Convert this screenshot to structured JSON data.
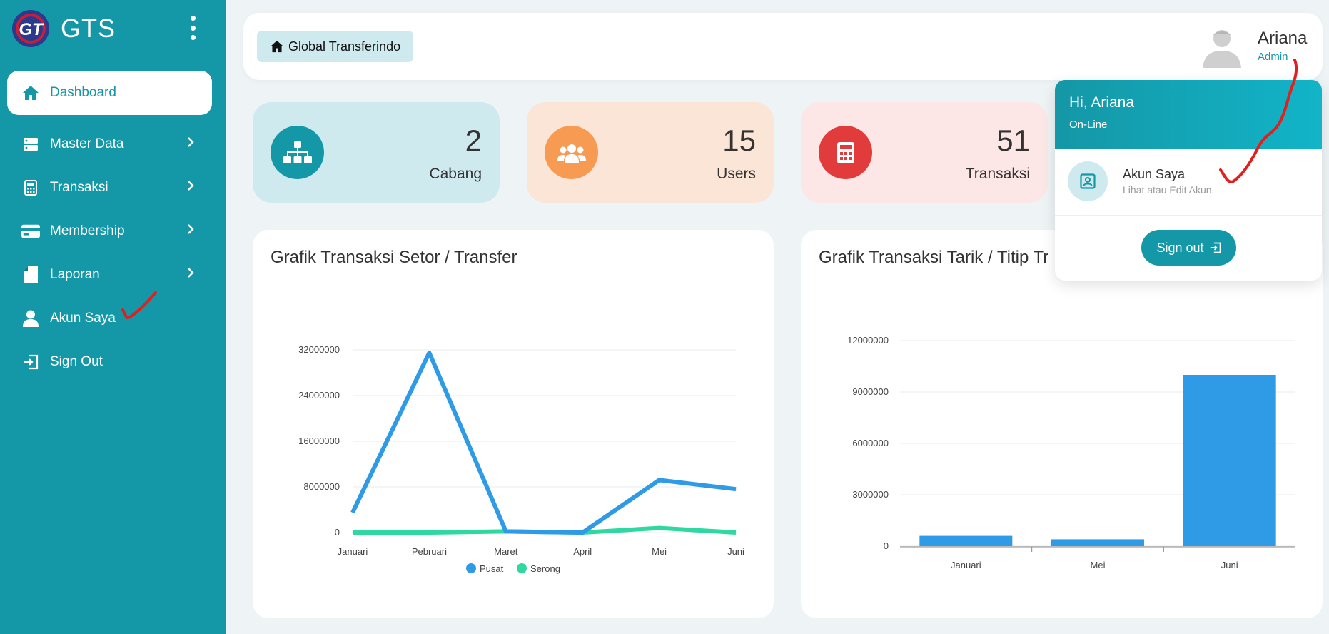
{
  "app": {
    "brand": "GTS"
  },
  "sidebar": {
    "items": [
      {
        "label": "Dashboard",
        "icon": "home-icon",
        "active": true
      },
      {
        "label": "Master Data",
        "icon": "server-icon",
        "chevron": true
      },
      {
        "label": "Transaksi",
        "icon": "calculator-icon",
        "chevron": true
      },
      {
        "label": "Membership",
        "icon": "credit-card-icon",
        "chevron": true
      },
      {
        "label": "Laporan",
        "icon": "file-icon",
        "chevron": true
      },
      {
        "label": "Akun Saya",
        "icon": "user-icon"
      },
      {
        "label": "Sign Out",
        "icon": "sign-out-icon"
      }
    ]
  },
  "topbar": {
    "breadcrumb": "Global Transferindo",
    "user_name": "Ariana",
    "user_role": "Admin"
  },
  "stats": [
    {
      "value": "2",
      "label": "Cabang",
      "icon": "sitemap-icon",
      "bg": "#cfeaee",
      "circle": "#1497a6"
    },
    {
      "value": "15",
      "label": "Users",
      "icon": "users-icon",
      "bg": "#fbe5d6",
      "circle": "#f79a52"
    },
    {
      "value": "51",
      "label": "Transaksi",
      "icon": "calculator-icon",
      "bg": "#fde6e6",
      "circle": "#e23b3b"
    }
  ],
  "charts": {
    "left_title": "Grafik Transaksi Setor / Transfer",
    "right_title": "Grafik Transaksi Tarik / Titip Tr"
  },
  "dropdown": {
    "greeting": "Hi, Ariana",
    "status": "On-Line",
    "item_title": "Akun Saya",
    "item_sub": "Lihat atau Edit Akun.",
    "signout": "Sign out"
  },
  "colors": {
    "primary": "#1497a6",
    "series_pusat": "#2f9be6",
    "series_serong": "#2ed8a0",
    "annotation": "#e0201f"
  },
  "chart_data": [
    {
      "type": "line",
      "title": "Grafik Transaksi Setor / Transfer",
      "categories": [
        "Januari",
        "Pebruari",
        "Maret",
        "April",
        "Mei",
        "Juni"
      ],
      "series": [
        {
          "name": "Pusat",
          "values": [
            3500000,
            31500000,
            200000,
            0,
            9200000,
            7600000
          ]
        },
        {
          "name": "Serong",
          "values": [
            0,
            0,
            200000,
            0,
            800000,
            0
          ]
        }
      ],
      "yticks": [
        "0",
        "8000000",
        "16000000",
        "24000000",
        "32000000"
      ],
      "ylim": [
        0,
        32000000
      ],
      "grid": true,
      "legend": "bottom"
    },
    {
      "type": "bar",
      "title": "Grafik Transaksi Tarik / Titip Tr",
      "categories": [
        "Januari",
        "Mei",
        "Juni"
      ],
      "values": [
        600000,
        400000,
        10000000
      ],
      "yticks": [
        "0",
        "3000000",
        "6000000",
        "9000000",
        "12000000"
      ],
      "ylim": [
        0,
        12000000
      ],
      "grid": true
    }
  ]
}
